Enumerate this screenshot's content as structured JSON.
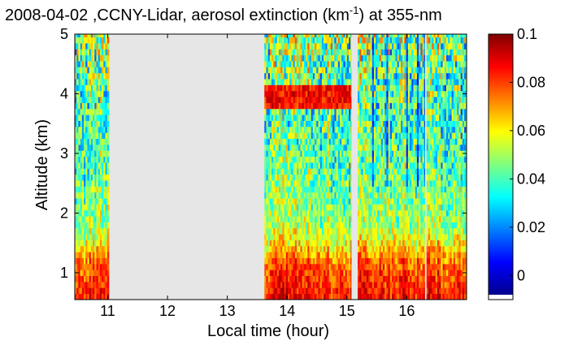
{
  "chart_data": {
    "type": "heatmap",
    "title": {
      "prefix": "2008-04-02 ,CCNY-Lidar, aerosol extinction (km",
      "superscript": "-1",
      "suffix": ") at 355-nm"
    },
    "xlabel": "Local time (hour)",
    "ylabel": "Altitude (km)",
    "xlim": [
      10.45,
      17.0
    ],
    "ylim": [
      0.55,
      5.0
    ],
    "xticks": [
      11,
      12,
      13,
      14,
      15,
      16
    ],
    "yticks": [
      1,
      2,
      3,
      4,
      5
    ],
    "colorbar": {
      "range": [
        -0.01,
        0.1
      ],
      "ticks": [
        0,
        0.02,
        0.04,
        0.06,
        0.08,
        0.1
      ],
      "tick_labels": [
        "0",
        "0.02",
        "0.04",
        "0.06",
        "0.08",
        "0.1"
      ],
      "colormap": "jet"
    },
    "no_data_color": "#e6e6e6",
    "data_segments": [
      {
        "start": 10.45,
        "end": 11.02
      },
      {
        "start": 13.62,
        "end": 15.07
      },
      {
        "start": 15.18,
        "end": 16.3
      },
      {
        "start": 16.33,
        "end": 17.0
      }
    ],
    "no_data_intervals": [
      {
        "start": 11.02,
        "end": 13.62
      },
      {
        "start": 15.07,
        "end": 15.18
      },
      {
        "start": 16.3,
        "end": 16.33
      }
    ],
    "extinction_profile_km": [
      {
        "altitude": 0.55,
        "value": 0.085
      },
      {
        "altitude": 0.9,
        "value": 0.08
      },
      {
        "altitude": 1.2,
        "value": 0.074
      },
      {
        "altitude": 1.35,
        "value": 0.066
      },
      {
        "altitude": 1.55,
        "value": 0.057
      },
      {
        "altitude": 1.8,
        "value": 0.048
      },
      {
        "altitude": 2.5,
        "value": 0.043
      },
      {
        "altitude": 3.0,
        "value": 0.04
      },
      {
        "altitude": 3.5,
        "value": 0.038
      },
      {
        "altitude": 4.0,
        "value": 0.04
      },
      {
        "altitude": 4.5,
        "value": 0.043
      },
      {
        "altitude": 5.0,
        "value": 0.048
      }
    ],
    "features": [
      {
        "name": "elevated aerosol layer",
        "time_start": 13.62,
        "time_end": 15.07,
        "altitude_start": 3.9,
        "altitude_end": 4.1,
        "value": 0.085
      },
      {
        "name": "low extinction streaks",
        "time_start": 15.2,
        "time_end": 16.3,
        "altitude_start": 2.5,
        "altitude_end": 5.0,
        "value": 0.005
      }
    ]
  }
}
